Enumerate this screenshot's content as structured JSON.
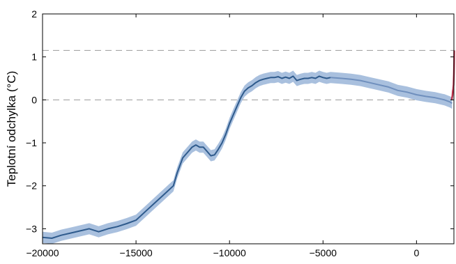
{
  "chart_data": {
    "type": "line",
    "title": "",
    "xlabel": "",
    "ylabel": "Teplotní odchylka  (°C)",
    "xlim": [
      -20000,
      2000
    ],
    "ylim": [
      -3.35,
      2
    ],
    "x_ticks": [
      -20000,
      -15000,
      -10000,
      -5000,
      0
    ],
    "x_tick_labels": [
      "−20000",
      "−15000",
      "−10000",
      "−5000",
      "0"
    ],
    "y_ticks": [
      -3,
      -2,
      -1,
      0,
      1,
      2
    ],
    "y_tick_labels": [
      "−3",
      "−2",
      "−1",
      "0",
      "1",
      "2"
    ],
    "reference_lines": [
      {
        "y": 0,
        "style": "dashed",
        "color": "#999999"
      },
      {
        "y": 1.15,
        "style": "dashed",
        "color": "#999999"
      }
    ],
    "colors": {
      "band": "#a9c0de",
      "reconstruction": "#2e5a8c",
      "reconstruction_late": "#6f8fbd",
      "instrumental": "#b8324b"
    },
    "series": [
      {
        "role": "reconstruction",
        "x": [
          -20000,
          -19500,
          -19000,
          -18500,
          -18000,
          -17500,
          -17000,
          -16500,
          -16000,
          -15500,
          -15000,
          -14500,
          -14000,
          -13500,
          -13000,
          -12800,
          -12500,
          -12200,
          -12000,
          -11800,
          -11600,
          -11400,
          -11200,
          -11000,
          -10800,
          -10600,
          -10400,
          -10200,
          -10000,
          -9800,
          -9600,
          -9400,
          -9200,
          -9000,
          -8800,
          -8600,
          -8400,
          -8200,
          -8000,
          -7800,
          -7600,
          -7400,
          -7200,
          -7000,
          -6800,
          -6600,
          -6400,
          -6200,
          -6000,
          -5800,
          -5600,
          -5400,
          -5200,
          -5000,
          -4800,
          -4600
        ],
        "y": [
          -3.2,
          -3.22,
          -3.15,
          -3.1,
          -3.05,
          -3.0,
          -3.07,
          -3.0,
          -2.95,
          -2.88,
          -2.8,
          -2.6,
          -2.4,
          -2.2,
          -2.0,
          -1.7,
          -1.35,
          -1.2,
          -1.1,
          -1.05,
          -1.1,
          -1.1,
          -1.2,
          -1.3,
          -1.28,
          -1.15,
          -1.0,
          -0.8,
          -0.55,
          -0.35,
          -0.15,
          0.05,
          0.2,
          0.28,
          0.33,
          0.4,
          0.45,
          0.48,
          0.5,
          0.52,
          0.52,
          0.54,
          0.5,
          0.53,
          0.5,
          0.55,
          0.45,
          0.48,
          0.5,
          0.5,
          0.52,
          0.5,
          0.55,
          0.52,
          0.5,
          0.52
        ],
        "uncertainty": 0.13
      },
      {
        "role": "reconstruction_late",
        "x": [
          -4600,
          -4000,
          -3500,
          -3000,
          -2500,
          -2000,
          -1500,
          -1000,
          -500,
          0,
          500,
          1000,
          1500,
          1800,
          1900
        ],
        "y": [
          0.52,
          0.5,
          0.48,
          0.45,
          0.4,
          0.35,
          0.3,
          0.22,
          0.18,
          0.12,
          0.08,
          0.05,
          0.0,
          -0.05,
          -0.08
        ],
        "uncertainty": 0.13
      },
      {
        "role": "instrumental",
        "x": [
          1880,
          1900,
          1920,
          1940,
          1960,
          1980,
          2000,
          2010,
          2019
        ],
        "y": [
          0.0,
          0.05,
          0.1,
          0.2,
          0.25,
          0.35,
          0.6,
          0.85,
          1.15
        ]
      }
    ]
  }
}
